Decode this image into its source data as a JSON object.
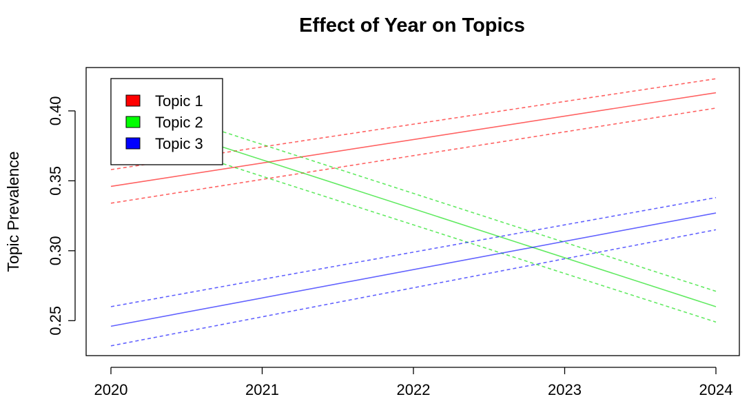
{
  "chart_data": {
    "type": "line",
    "title": "Effect of Year on Topics",
    "xlabel": "",
    "ylabel": "Topic Prevalence",
    "x": [
      2020,
      2024
    ],
    "xticks": [
      "2020",
      "2021",
      "2022",
      "2023",
      "2024"
    ],
    "yticks": [
      "0.25",
      "0.30",
      "0.35",
      "0.40"
    ],
    "xlim": [
      2020,
      2024
    ],
    "ylim": [
      0.225,
      0.431
    ],
    "grid": false,
    "legend_position": "top-left",
    "series": [
      {
        "name": "Topic 1",
        "color": "#ff0000",
        "values": [
          0.346,
          0.413
        ],
        "lower": [
          0.334,
          0.402
        ],
        "upper": [
          0.358,
          0.423
        ]
      },
      {
        "name": "Topic 2",
        "color": "#00dd00",
        "values": [
          0.4,
          0.26
        ],
        "lower": [
          0.388,
          0.249
        ],
        "upper": [
          0.411,
          0.271
        ]
      },
      {
        "name": "Topic 3",
        "color": "#0000ff",
        "values": [
          0.246,
          0.327
        ],
        "lower": [
          0.232,
          0.315
        ],
        "upper": [
          0.26,
          0.338
        ]
      }
    ]
  }
}
